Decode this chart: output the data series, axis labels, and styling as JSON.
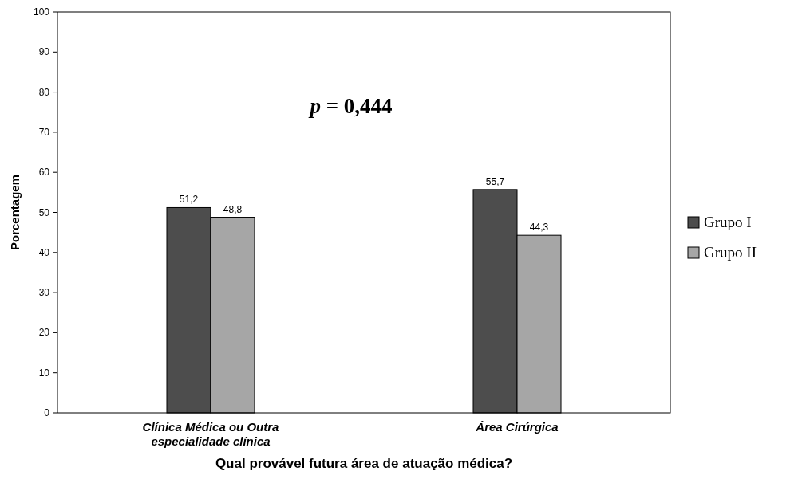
{
  "chart_data": {
    "type": "bar",
    "xlabel": "Qual provável futura área de atuação médica?",
    "ylabel": "Porcentagem",
    "categories": [
      "Clínica Médica ou Outra especialidade clínica",
      "Área Cirúrgica"
    ],
    "series": [
      {
        "name": "Grupo I",
        "color": "#4d4d4d",
        "values": [
          51.2,
          55.7
        ],
        "value_labels": [
          "51,2",
          "55,7"
        ]
      },
      {
        "name": "Grupo II",
        "color": "#a6a6a6",
        "values": [
          48.8,
          44.3
        ],
        "value_labels": [
          "48,8",
          "44,3"
        ]
      }
    ],
    "ylim": [
      0,
      100
    ],
    "yticks": [
      0,
      10,
      20,
      30,
      40,
      50,
      60,
      70,
      80,
      90,
      100
    ],
    "annotations": [
      "p = 0,444"
    ],
    "legend": "right",
    "grid": false
  }
}
